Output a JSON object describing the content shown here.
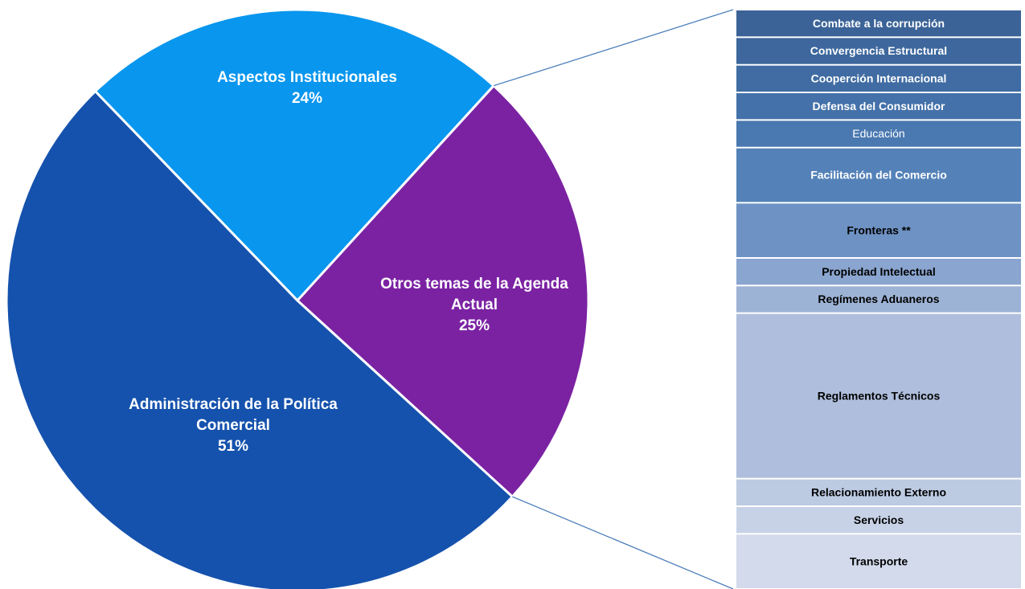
{
  "chart_data": {
    "type": "pie-of-bar",
    "categories": [
      "Aspectos Institucionales",
      "Otros temas de la Agenda Actual",
      "Administración de la Política Comercial"
    ],
    "values": [
      24,
      25,
      51
    ],
    "value_labels": [
      "24%",
      "25%",
      "51%"
    ],
    "colors": [
      "#0896ee",
      "#7b22a3",
      "#1552ad"
    ],
    "bar": {
      "categories": [
        "Combate a la corrupción",
        "Convergencia Estructural",
        "Cooperción Internacional",
        "Defensa del Consumidor",
        "Educación",
        "Facilitación del Comercio",
        "Fronteras **",
        "Propiedad Intelectual",
        "Regímenes Aduaneros",
        "Reglamentos Técnicos",
        "Relacionamiento Externo",
        "Servicios",
        "Transporte"
      ],
      "values": [
        1,
        1,
        1,
        1,
        1,
        2,
        2,
        1,
        1,
        6,
        1,
        1,
        2
      ],
      "colors": [
        "#3b6397",
        "#3d679d",
        "#406ca3",
        "#4471a9",
        "#4a78b0",
        "#5482b8",
        "#6e92c4",
        "#8aa5cf",
        "#9db3d6",
        "#aebedc",
        "#bccae2",
        "#c8d2e7",
        "#d2daeb"
      ],
      "text_colors": [
        "#ffffff",
        "#ffffff",
        "#ffffff",
        "#ffffff",
        "#ffffff",
        "#ffffff",
        "#000000",
        "#000000",
        "#000000",
        "#000000",
        "#000000",
        "#000000",
        "#000000"
      ]
    }
  }
}
